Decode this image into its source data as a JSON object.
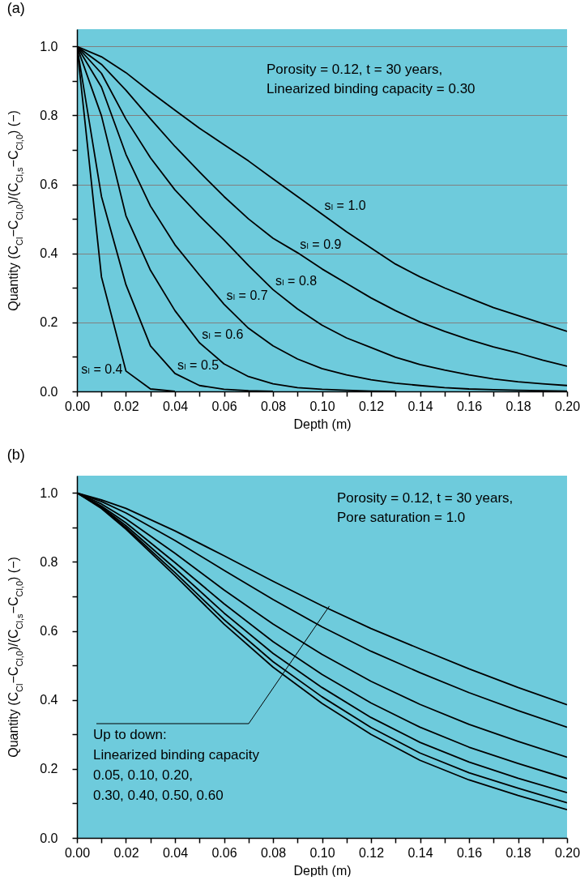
{
  "chart_data": [
    {
      "type": "line",
      "title": "(a)",
      "xlabel": "Depth (m)",
      "ylabel": "Quantity (C$_{Cl}$−C$_{Cl,0}$)/(C$_{Cl,s}$−C$_{Cl,0}$) (−)",
      "x": [
        0,
        0.01,
        0.02,
        0.03,
        0.04,
        0.05,
        0.06,
        0.07,
        0.08,
        0.09,
        0.1,
        0.11,
        0.12,
        0.13,
        0.14,
        0.15,
        0.16,
        0.17,
        0.18,
        0.19,
        0.2
      ],
      "series": [
        {
          "name": "sₗ = 1.0",
          "color": "#000000",
          "values": [
            1,
            0.97,
            0.924,
            0.868,
            0.815,
            0.763,
            0.715,
            0.668,
            0.616,
            0.565,
            0.514,
            0.463,
            0.416,
            0.369,
            0.332,
            0.3,
            0.271,
            0.243,
            0.22,
            0.197,
            0.174
          ]
        },
        {
          "name": "sₗ = 0.9",
          "color": "#000000",
          "values": [
            1,
            0.948,
            0.873,
            0.79,
            0.71,
            0.636,
            0.565,
            0.5,
            0.444,
            0.402,
            0.355,
            0.313,
            0.271,
            0.234,
            0.201,
            0.174,
            0.15,
            0.129,
            0.111,
            0.091,
            0.073
          ]
        },
        {
          "name": "sₗ = 0.8",
          "color": "#000000",
          "values": [
            1,
            0.922,
            0.789,
            0.677,
            0.584,
            0.509,
            0.439,
            0.365,
            0.295,
            0.239,
            0.192,
            0.155,
            0.127,
            0.099,
            0.078,
            0.062,
            0.048,
            0.036,
            0.028,
            0.022,
            0.017
          ]
        },
        {
          "name": "sₗ = 0.7",
          "color": "#000000",
          "values": [
            1,
            0.882,
            0.687,
            0.537,
            0.425,
            0.337,
            0.253,
            0.183,
            0.132,
            0.094,
            0.066,
            0.048,
            0.034,
            0.024,
            0.017,
            0.011,
            0.007,
            0.005,
            0.003,
            0.002,
            0.001
          ]
        },
        {
          "name": "sₗ = 0.6",
          "color": "#000000",
          "values": [
            1,
            0.799,
            0.509,
            0.351,
            0.234,
            0.141,
            0.08,
            0.043,
            0.022,
            0.011,
            0.006,
            0.003,
            0.001,
            0,
            null,
            null,
            null,
            null,
            null,
            null,
            null
          ]
        },
        {
          "name": "sₗ = 0.5",
          "color": "#000000",
          "values": [
            1,
            0.565,
            0.309,
            0.132,
            0.052,
            0.017,
            0.006,
            0.002,
            0,
            null,
            null,
            null,
            null,
            null,
            null,
            null,
            null,
            null,
            null,
            null,
            null
          ]
        },
        {
          "name": "sₗ = 0.4",
          "color": "#000000",
          "values": [
            1,
            0.332,
            0.059,
            0.007,
            0,
            null,
            null,
            null,
            null,
            null,
            null,
            null,
            null,
            null,
            null,
            null,
            null,
            null,
            null,
            null,
            null
          ]
        }
      ],
      "xlim": [
        0,
        0.2
      ],
      "xticks": [
        {
          "value": 0,
          "label": "0.00"
        },
        {
          "value": 0.01,
          "label": null
        },
        {
          "value": 0.02,
          "label": "0.02"
        },
        {
          "value": 0.03,
          "label": null
        },
        {
          "value": 0.04,
          "label": "0.04"
        },
        {
          "value": 0.05,
          "label": null
        },
        {
          "value": 0.06,
          "label": "0.06"
        },
        {
          "value": 0.07,
          "label": null
        },
        {
          "value": 0.08,
          "label": "0.08"
        },
        {
          "value": 0.09,
          "label": null
        },
        {
          "value": 0.1,
          "label": "0.10"
        },
        {
          "value": 0.11,
          "label": null
        },
        {
          "value": 0.12,
          "label": "0.12"
        },
        {
          "value": 0.13,
          "label": null
        },
        {
          "value": 0.14,
          "label": "0.14"
        },
        {
          "value": 0.15,
          "label": null
        },
        {
          "value": 0.16,
          "label": "0.16"
        },
        {
          "value": 0.17,
          "label": null
        },
        {
          "value": 0.18,
          "label": "0.18"
        },
        {
          "value": 0.19,
          "label": null
        },
        {
          "value": 0.2,
          "label": "0.20"
        }
      ],
      "ylim": [
        0,
        1.05
      ],
      "yticks": [
        {
          "value": 0,
          "label": "0.0"
        },
        {
          "value": 0.1,
          "label": null
        },
        {
          "value": 0.2,
          "label": "0.2"
        },
        {
          "value": 0.3,
          "label": null
        },
        {
          "value": 0.4,
          "label": "0.4"
        },
        {
          "value": 0.5,
          "label": null
        },
        {
          "value": 0.6,
          "label": "0.6"
        },
        {
          "value": 0.7,
          "label": null
        },
        {
          "value": 0.8,
          "label": "0.8"
        },
        {
          "value": 0.9,
          "label": null
        },
        {
          "value": 1,
          "label": "1.0"
        }
      ],
      "grid": "y",
      "annotations": [
        "Porosity = 0.12, t = 30 years,",
        "Linearized binding capacity = 0.30"
      ]
    },
    {
      "type": "line",
      "title": "(b)",
      "xlabel": "Depth (m)",
      "ylabel": "Quantity (C$_{Cl}$−C$_{Cl,0}$)/(C$_{Cl,s}$−C$_{Cl,0}$) (−)",
      "x": [
        0,
        0.01,
        0.02,
        0.04,
        0.06,
        0.08,
        0.1,
        0.12,
        0.14,
        0.16,
        0.18,
        0.2
      ],
      "series": [
        {
          "color": "#000000",
          "values": [
            1,
            0.98,
            0.955,
            0.89,
            0.818,
            0.744,
            0.673,
            0.607,
            0.548,
            0.49,
            0.436,
            0.386
          ]
        },
        {
          "color": "#000000",
          "values": [
            1,
            0.975,
            0.942,
            0.862,
            0.776,
            0.691,
            0.612,
            0.541,
            0.479,
            0.421,
            0.369,
            0.321
          ]
        },
        {
          "color": "#000000",
          "values": [
            1,
            0.968,
            0.925,
            0.825,
            0.719,
            0.62,
            0.532,
            0.454,
            0.387,
            0.329,
            0.28,
            0.234
          ]
        },
        {
          "color": "#000000",
          "values": [
            1,
            0.962,
            0.913,
            0.798,
            0.679,
            0.569,
            0.474,
            0.391,
            0.321,
            0.263,
            0.216,
            0.172
          ]
        },
        {
          "color": "#000000",
          "values": [
            1,
            0.959,
            0.905,
            0.781,
            0.652,
            0.535,
            0.436,
            0.349,
            0.277,
            0.22,
            0.173,
            0.131
          ]
        },
        {
          "color": "#000000",
          "values": [
            1,
            0.957,
            0.899,
            0.769,
            0.633,
            0.511,
            0.409,
            0.32,
            0.246,
            0.189,
            0.144,
            0.102
          ]
        },
        {
          "color": "#000000",
          "values": [
            1,
            0.955,
            0.895,
            0.76,
            0.62,
            0.495,
            0.39,
            0.3,
            0.225,
            0.168,
            0.123,
            0.082
          ]
        }
      ],
      "xlim": [
        0,
        0.2
      ],
      "xticks": [
        {
          "value": 0,
          "label": "0.00"
        },
        {
          "value": 0.01,
          "label": null
        },
        {
          "value": 0.02,
          "label": "0.02"
        },
        {
          "value": 0.03,
          "label": null
        },
        {
          "value": 0.04,
          "label": "0.04"
        },
        {
          "value": 0.05,
          "label": null
        },
        {
          "value": 0.06,
          "label": "0.06"
        },
        {
          "value": 0.07,
          "label": null
        },
        {
          "value": 0.08,
          "label": "0.08"
        },
        {
          "value": 0.09,
          "label": null
        },
        {
          "value": 0.1,
          "label": "0.10"
        },
        {
          "value": 0.11,
          "label": null
        },
        {
          "value": 0.12,
          "label": "0.12"
        },
        {
          "value": 0.13,
          "label": null
        },
        {
          "value": 0.14,
          "label": "0.14"
        },
        {
          "value": 0.15,
          "label": null
        },
        {
          "value": 0.16,
          "label": "0.16"
        },
        {
          "value": 0.17,
          "label": null
        },
        {
          "value": 0.18,
          "label": "0.18"
        },
        {
          "value": 0.19,
          "label": null
        },
        {
          "value": 0.2,
          "label": "0.20"
        }
      ],
      "ylim": [
        0,
        1.05
      ],
      "yticks": [
        {
          "value": 0,
          "label": "0.0"
        },
        {
          "value": 0.1,
          "label": null
        },
        {
          "value": 0.2,
          "label": "0.2"
        },
        {
          "value": 0.3,
          "label": null
        },
        {
          "value": 0.4,
          "label": "0.4"
        },
        {
          "value": 0.5,
          "label": null
        },
        {
          "value": 0.6,
          "label": "0.6"
        },
        {
          "value": 0.7,
          "label": null
        },
        {
          "value": 0.8,
          "label": "0.8"
        },
        {
          "value": 0.9,
          "label": null
        },
        {
          "value": 1,
          "label": "1.0"
        }
      ],
      "annotations": [
        "Porosity = 0.12, t = 30 years,",
        "Pore saturation = 1.0",
        {
          "text": "Up to down:\nLinearized binding capacity\n0.05, 0.10, 0.20,\n0.30, 0.40, 0.50, 0.60",
          "x": 0.103,
          "y": 0.672
        }
      ]
    }
  ]
}
